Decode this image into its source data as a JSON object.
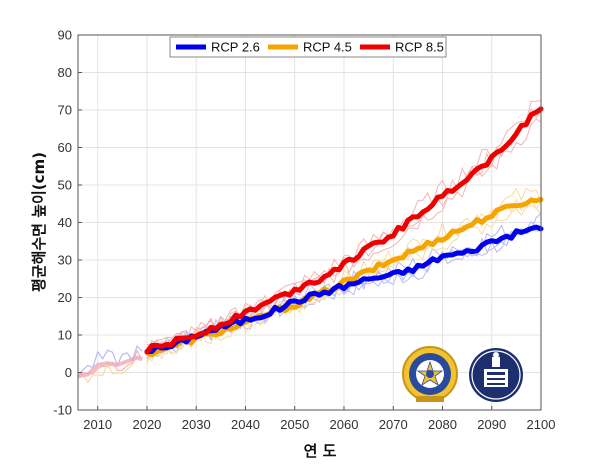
{
  "chart_data": {
    "type": "line",
    "title": "",
    "xlabel": "연 도",
    "ylabel": "평균해수면 높이(cm)",
    "xlim": [
      2006,
      2100
    ],
    "ylim": [
      -10,
      90
    ],
    "grid": true,
    "legend_position": "top",
    "x_ticks": [
      2010,
      2020,
      2030,
      2040,
      2050,
      2060,
      2070,
      2080,
      2090,
      2100
    ],
    "y_ticks": [
      -10,
      0,
      10,
      20,
      30,
      40,
      50,
      60,
      70,
      80,
      90
    ],
    "observed": {
      "x": [
        2006,
        2008,
        2010,
        2012,
        2014,
        2016,
        2018,
        2019
      ],
      "values": [
        -1,
        -0.5,
        2,
        2.5,
        2,
        3,
        4,
        3.5
      ]
    },
    "series": [
      {
        "name": "RCP 2.6",
        "color": "#0000ee",
        "x": [
          2020,
          2025,
          2030,
          2035,
          2040,
          2045,
          2050,
          2055,
          2060,
          2065,
          2070,
          2075,
          2080,
          2085,
          2090,
          2095,
          2100
        ],
        "values": [
          6,
          7,
          10,
          12,
          14,
          16,
          19,
          21,
          23,
          25,
          26,
          28,
          31,
          32,
          35,
          37,
          39
        ]
      },
      {
        "name": "RCP 4.5",
        "color": "#f5a400",
        "x": [
          2020,
          2025,
          2030,
          2035,
          2040,
          2045,
          2050,
          2055,
          2060,
          2065,
          2070,
          2075,
          2080,
          2085,
          2090,
          2095,
          2100
        ],
        "values": [
          5,
          7,
          9,
          11,
          13,
          16,
          18,
          21,
          24,
          27,
          30,
          33,
          36,
          39,
          42,
          45,
          46
        ]
      },
      {
        "name": "RCP 8.5",
        "color": "#ee0000",
        "x": [
          2020,
          2025,
          2030,
          2035,
          2040,
          2045,
          2050,
          2055,
          2060,
          2065,
          2070,
          2075,
          2080,
          2085,
          2090,
          2095,
          2100
        ],
        "values": [
          6,
          8,
          10,
          13,
          16,
          19,
          22,
          25,
          29,
          33,
          37,
          42,
          47,
          52,
          57,
          64,
          71
        ]
      }
    ]
  }
}
